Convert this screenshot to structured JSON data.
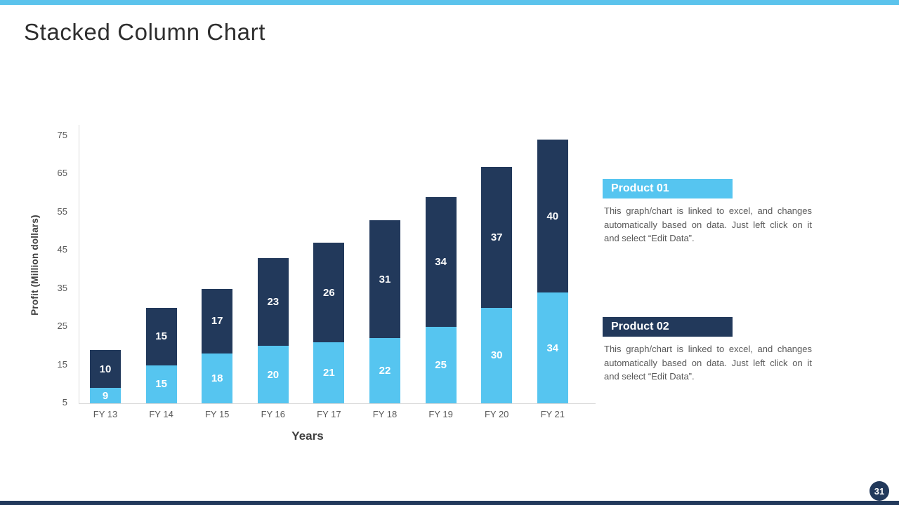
{
  "slide": {
    "title": "Stacked Column Chart",
    "page_number": "31"
  },
  "chart_data": {
    "type": "bar",
    "stacked": true,
    "xlabel": "Years",
    "ylabel": "Profit (Million dollars)",
    "categories": [
      "FY 13",
      "FY 14",
      "FY 15",
      "FY 16",
      "FY 17",
      "FY 18",
      "FY 19",
      "FY 20",
      "FY 21"
    ],
    "series": [
      {
        "name": "Product 01",
        "color": "#56C5F0",
        "values": [
          9,
          15,
          18,
          20,
          21,
          22,
          25,
          30,
          34
        ]
      },
      {
        "name": "Product 02",
        "color": "#22395B",
        "values": [
          10,
          15,
          17,
          23,
          26,
          31,
          34,
          37,
          40
        ]
      }
    ],
    "y_ticks": [
      5,
      15,
      25,
      35,
      45,
      55,
      65,
      75
    ],
    "ylim": [
      5,
      75
    ],
    "grid": false,
    "legend_position": "right",
    "value_label_color": "#FFFFFF"
  },
  "legend": {
    "items": [
      {
        "label": "Product 01",
        "color": "#56C5F0",
        "description": "This graph/chart is linked to excel, and changes automatically based on data. Just left click on it and select “Edit Data”."
      },
      {
        "label": "Product 02",
        "color": "#22395B",
        "description": "This graph/chart is linked to excel, and changes automatically based on data. Just left click on it and select “Edit Data”."
      }
    ]
  },
  "theme": {
    "accent_bar_color": "#5BC3EC",
    "footer_bar_color": "#22395B",
    "page_badge_color": "#22395B",
    "axis_line_color": "#D9D9D9"
  }
}
